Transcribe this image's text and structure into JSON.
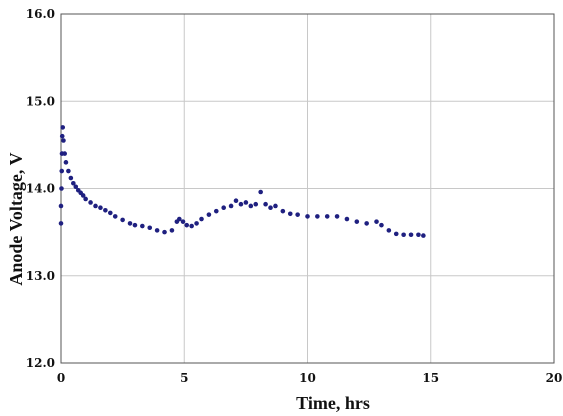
{
  "chart_data": {
    "type": "scatter",
    "xlabel": "Time, hrs",
    "ylabel": "Anode Voltage, V",
    "xlim": [
      0,
      20
    ],
    "ylim": [
      12.0,
      16.0
    ],
    "x_ticks": [
      "0",
      "5",
      "10",
      "15",
      "20"
    ],
    "y_ticks": [
      "12.0",
      "13.0",
      "14.0",
      "15.0",
      "16.0"
    ],
    "grid": true,
    "marker_color": "#1f2080",
    "series": [
      {
        "values": [
          [
            0.0,
            13.6
          ],
          [
            0.0,
            13.8
          ],
          [
            0.02,
            14.0
          ],
          [
            0.03,
            14.2
          ],
          [
            0.04,
            14.4
          ],
          [
            0.05,
            14.6
          ],
          [
            0.07,
            14.7
          ],
          [
            0.1,
            14.55
          ],
          [
            0.15,
            14.4
          ],
          [
            0.2,
            14.3
          ],
          [
            0.3,
            14.2
          ],
          [
            0.4,
            14.12
          ],
          [
            0.5,
            14.06
          ],
          [
            0.6,
            14.02
          ],
          [
            0.7,
            13.98
          ],
          [
            0.8,
            13.95
          ],
          [
            0.9,
            13.92
          ],
          [
            1.0,
            13.88
          ],
          [
            1.2,
            13.84
          ],
          [
            1.4,
            13.8
          ],
          [
            1.6,
            13.78
          ],
          [
            1.8,
            13.75
          ],
          [
            2.0,
            13.72
          ],
          [
            2.2,
            13.68
          ],
          [
            2.5,
            13.64
          ],
          [
            2.8,
            13.6
          ],
          [
            3.0,
            13.58
          ],
          [
            3.3,
            13.57
          ],
          [
            3.6,
            13.55
          ],
          [
            3.9,
            13.52
          ],
          [
            4.2,
            13.5
          ],
          [
            4.5,
            13.52
          ],
          [
            4.7,
            13.62
          ],
          [
            4.8,
            13.65
          ],
          [
            4.95,
            13.62
          ],
          [
            5.1,
            13.58
          ],
          [
            5.3,
            13.57
          ],
          [
            5.5,
            13.6
          ],
          [
            5.7,
            13.65
          ],
          [
            6.0,
            13.7
          ],
          [
            6.3,
            13.74
          ],
          [
            6.6,
            13.78
          ],
          [
            6.9,
            13.8
          ],
          [
            7.1,
            13.86
          ],
          [
            7.3,
            13.82
          ],
          [
            7.5,
            13.84
          ],
          [
            7.7,
            13.8
          ],
          [
            7.9,
            13.82
          ],
          [
            8.1,
            13.96
          ],
          [
            8.3,
            13.82
          ],
          [
            8.5,
            13.78
          ],
          [
            8.7,
            13.8
          ],
          [
            9.0,
            13.74
          ],
          [
            9.3,
            13.71
          ],
          [
            9.6,
            13.7
          ],
          [
            10.0,
            13.68
          ],
          [
            10.4,
            13.68
          ],
          [
            10.8,
            13.68
          ],
          [
            11.2,
            13.68
          ],
          [
            11.6,
            13.65
          ],
          [
            12.0,
            13.62
          ],
          [
            12.4,
            13.6
          ],
          [
            12.8,
            13.62
          ],
          [
            13.0,
            13.58
          ],
          [
            13.3,
            13.52
          ],
          [
            13.6,
            13.48
          ],
          [
            13.9,
            13.47
          ],
          [
            14.2,
            13.47
          ],
          [
            14.5,
            13.47
          ],
          [
            14.7,
            13.46
          ]
        ]
      }
    ]
  }
}
